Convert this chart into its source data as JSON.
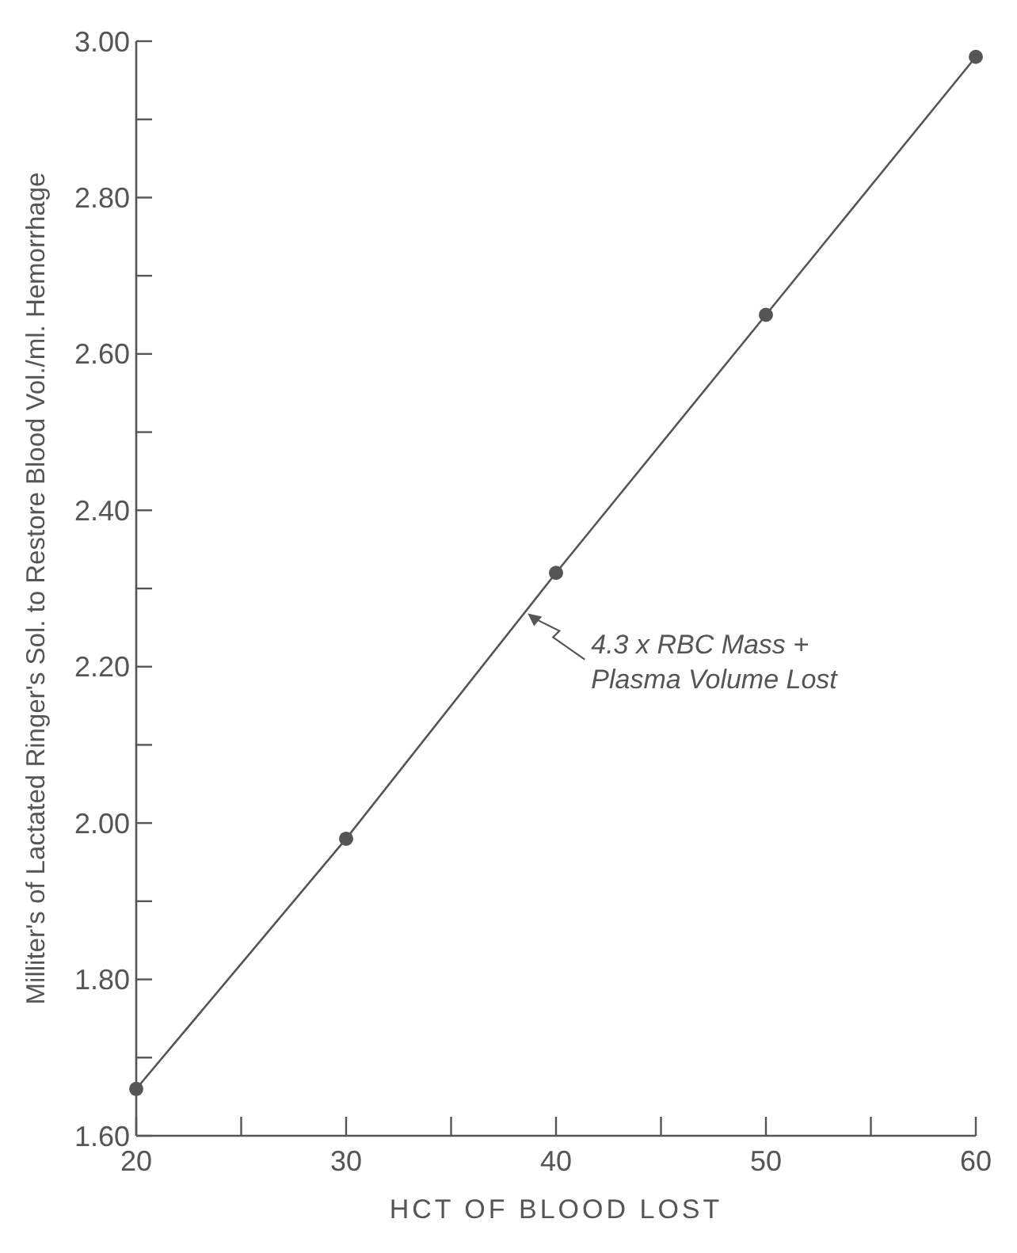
{
  "chart_data": {
    "type": "line",
    "xlabel": "HCT OF BLOOD LOST",
    "ylabel": "Milliter's of Lactated Ringer's Sol. to Restore Blood Vol./ml. Hemorrhage",
    "x": [
      20,
      30,
      40,
      50,
      60
    ],
    "series": [
      {
        "color": "#555555",
        "values": [
          1.66,
          1.98,
          2.32,
          2.65,
          2.98
        ]
      }
    ],
    "marker": "circle",
    "line_style": "solid",
    "xlim": [
      20,
      60
    ],
    "xticks": [
      20,
      {
        "value": 25,
        "label": null
      },
      30,
      {
        "value": 35,
        "label": null
      },
      40,
      {
        "value": 45,
        "label": null
      },
      50,
      {
        "value": 55,
        "label": null
      },
      60
    ],
    "ylim": [
      1.6,
      3.0
    ],
    "yticks": [
      {
        "value": 1.6,
        "label": "1.60"
      },
      {
        "value": 1.7,
        "label": null
      },
      {
        "value": 1.8,
        "label": "1.80"
      },
      {
        "value": 1.9,
        "label": null
      },
      {
        "value": 2.0,
        "label": "2.00"
      },
      {
        "value": 2.1,
        "label": null
      },
      {
        "value": 2.2,
        "label": "2.20"
      },
      {
        "value": 2.3,
        "label": null
      },
      {
        "value": 2.4,
        "label": "2.40"
      },
      {
        "value": 2.5,
        "label": null
      },
      {
        "value": 2.6,
        "label": "2.60"
      },
      {
        "value": 2.7,
        "label": null
      },
      {
        "value": 2.8,
        "label": "2.80"
      },
      {
        "value": 2.9,
        "label": null
      },
      {
        "value": 3.0,
        "label": "3.00"
      }
    ],
    "grid": false,
    "annotations": [
      {
        "text": "4.3 x RBC Mass +\nPlasma Volume Lost",
        "x": 38.5,
        "y": 2.27
      }
    ]
  }
}
